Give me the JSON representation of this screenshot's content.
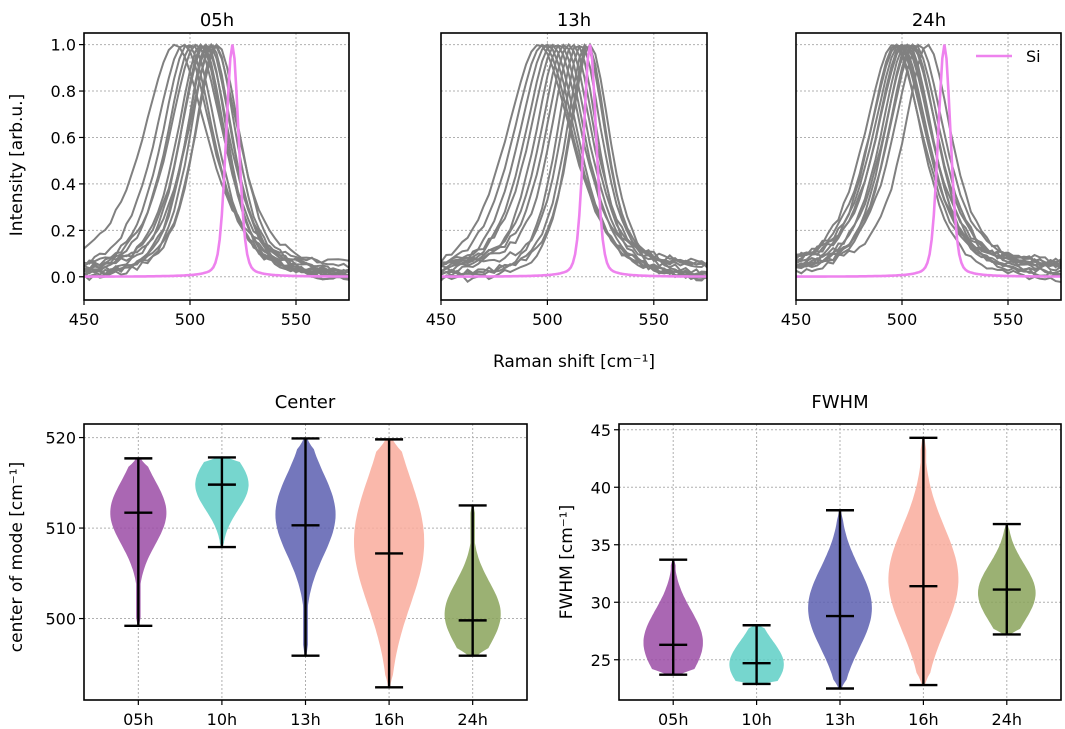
{
  "chart_data": [
    {
      "type": "line",
      "title": "05h",
      "xlabel": "Raman shift [cm⁻¹]",
      "ylabel": "Intensity [arb.u.]",
      "xlim": [
        450,
        575
      ],
      "ylim": [
        -0.1,
        1.05
      ],
      "xticks": [
        "450",
        "500",
        "550"
      ],
      "yticks": [
        "0.0",
        "0.2",
        "0.4",
        "0.6",
        "0.8",
        "1.0"
      ],
      "grid": true,
      "gray_centers": [
        493,
        497,
        499,
        501,
        503,
        505,
        506,
        507,
        508,
        509,
        510,
        511,
        512,
        513
      ],
      "gray_fwhm": [
        36,
        33,
        30,
        29,
        31,
        27,
        26,
        28,
        24,
        27,
        25,
        29,
        24,
        26
      ],
      "gray_color": "#808080",
      "si_center": 520,
      "si_fwhm": 7,
      "si_color": "#ee82ee",
      "legend": null
    },
    {
      "type": "line",
      "title": "13h",
      "xlim": [
        450,
        575
      ],
      "ylim": [
        -0.1,
        1.05
      ],
      "xticks": [
        "450",
        "500",
        "550"
      ],
      "grid": true,
      "gray_centers": [
        496,
        498,
        500,
        502,
        504,
        506,
        508,
        510,
        512,
        514,
        516,
        518,
        519,
        520
      ],
      "gray_fwhm": [
        38,
        35,
        33,
        31,
        30,
        29,
        27,
        26,
        25,
        24,
        23,
        23,
        22,
        23
      ],
      "gray_color": "#808080",
      "si_center": 520,
      "si_fwhm": 7,
      "si_color": "#ee82ee",
      "legend": null
    },
    {
      "type": "line",
      "title": "24h",
      "xlim": [
        450,
        575
      ],
      "ylim": [
        -0.1,
        1.05
      ],
      "xticks": [
        "450",
        "500",
        "550"
      ],
      "grid": true,
      "gray_centers": [
        496,
        497,
        498,
        499,
        500,
        501,
        502,
        503,
        504,
        505,
        506,
        508,
        512
      ],
      "gray_fwhm": [
        34,
        31,
        32,
        30,
        29,
        31,
        30,
        28,
        31,
        29,
        30,
        29,
        27
      ],
      "gray_color": "#808080",
      "si_center": 520,
      "si_fwhm": 7,
      "si_color": "#ee82ee",
      "legend": {
        "label": "Si",
        "position": "upper right"
      }
    },
    {
      "type": "violin",
      "title": "Center",
      "ylabel": "center of mode [cm⁻¹]",
      "categories": [
        "05h",
        "10h",
        "13h",
        "16h",
        "24h"
      ],
      "ylim": [
        491,
        521.5
      ],
      "yticks": [
        500,
        510,
        520
      ],
      "colors": [
        "#9b4ca6",
        "#5ecfc6",
        "#5c5fb0",
        "#f9ab9c",
        "#8aa35a"
      ],
      "min": [
        499.2,
        507.9,
        495.9,
        492.4,
        495.9
      ],
      "median": [
        511.7,
        514.8,
        510.3,
        507.2,
        499.8
      ],
      "max": [
        517.7,
        517.8,
        519.9,
        519.8,
        512.5
      ],
      "peak": [
        511.7,
        514.8,
        511.5,
        508.5,
        500.5
      ],
      "width": [
        3.5,
        2.8,
        4.5,
        7.0,
        3.5
      ]
    },
    {
      "type": "violin",
      "title": "FWHM",
      "ylabel": "FWHM [cm⁻¹]",
      "categories": [
        "05h",
        "10h",
        "13h",
        "16h",
        "24h"
      ],
      "ylim": [
        21.5,
        45.5
      ],
      "yticks": [
        25,
        30,
        35,
        40,
        45
      ],
      "colors": [
        "#9b4ca6",
        "#5ecfc6",
        "#5c5fb0",
        "#f9ab9c",
        "#8aa35a"
      ],
      "min": [
        23.7,
        22.9,
        22.5,
        22.8,
        27.2
      ],
      "median": [
        26.3,
        24.7,
        28.8,
        31.4,
        31.1
      ],
      "max": [
        33.7,
        28.0,
        38.0,
        44.3,
        36.8
      ],
      "peak": [
        26.5,
        24.6,
        29.5,
        32.0,
        30.8
      ],
      "width": [
        2.8,
        2.0,
        3.5,
        4.5,
        2.5
      ]
    }
  ]
}
